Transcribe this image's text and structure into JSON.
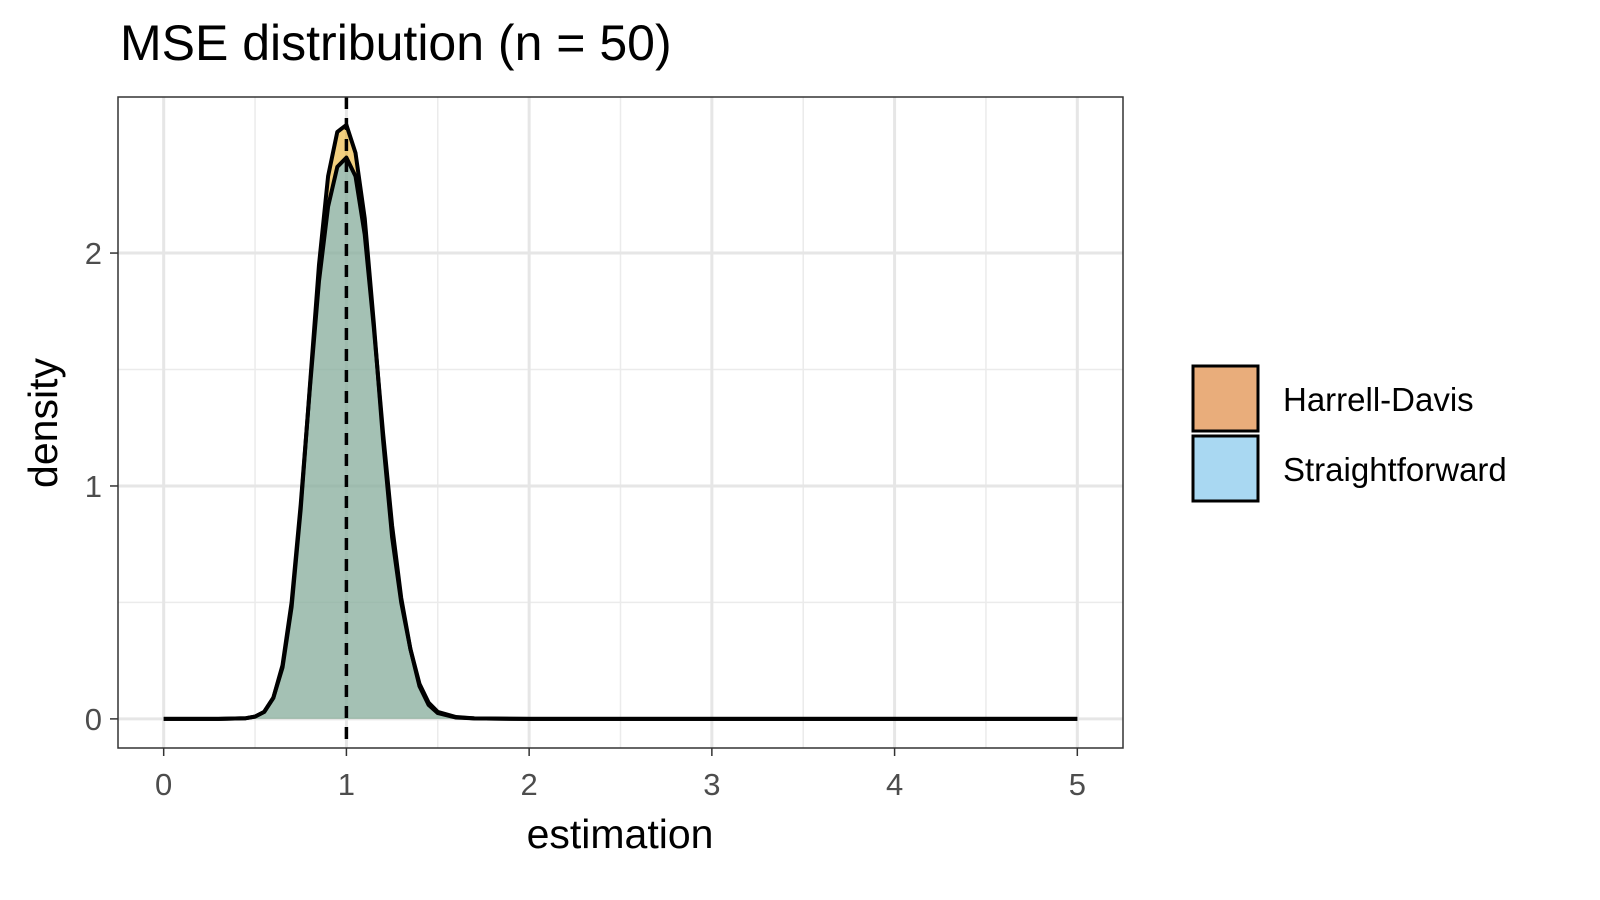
{
  "chart_data": {
    "type": "area",
    "title": "MSE distribution (n = 50)",
    "xlabel": "estimation",
    "ylabel": "density",
    "xlim": [
      -0.25,
      5.25
    ],
    "ylim": [
      -0.125,
      2.67
    ],
    "x_ticks": [
      0,
      1,
      2,
      3,
      4,
      5
    ],
    "y_ticks": [
      0,
      1,
      2
    ],
    "reference_line": {
      "x": 1,
      "style": "dashed",
      "color": "#000000"
    },
    "grid": true,
    "legend_position": "right",
    "series": [
      {
        "name": "Harrell-Davis",
        "color": "#E69F00",
        "fill": "#E9AD7B",
        "points": [
          [
            0,
            0
          ],
          [
            0.3,
            0
          ],
          [
            0.45,
            0.003
          ],
          [
            0.5,
            0.01
          ],
          [
            0.55,
            0.03
          ],
          [
            0.6,
            0.09
          ],
          [
            0.65,
            0.22
          ],
          [
            0.7,
            0.48
          ],
          [
            0.75,
            0.9
          ],
          [
            0.8,
            1.43
          ],
          [
            0.85,
            1.95
          ],
          [
            0.9,
            2.33
          ],
          [
            0.95,
            2.52
          ],
          [
            1.0,
            2.55
          ],
          [
            1.05,
            2.43
          ],
          [
            1.1,
            2.15
          ],
          [
            1.15,
            1.7
          ],
          [
            1.2,
            1.2
          ],
          [
            1.25,
            0.78
          ],
          [
            1.3,
            0.5
          ],
          [
            1.35,
            0.3
          ],
          [
            1.4,
            0.14
          ],
          [
            1.45,
            0.06
          ],
          [
            1.5,
            0.025
          ],
          [
            1.6,
            0.006
          ],
          [
            1.7,
            0.002
          ],
          [
            2.0,
            0
          ],
          [
            5.0,
            0
          ]
        ]
      },
      {
        "name": "Straightforward",
        "color": "#56B4E9",
        "fill": "#A9D8F2",
        "points": [
          [
            0,
            0
          ],
          [
            0.3,
            0
          ],
          [
            0.45,
            0.003
          ],
          [
            0.5,
            0.01
          ],
          [
            0.55,
            0.03
          ],
          [
            0.6,
            0.09
          ],
          [
            0.65,
            0.23
          ],
          [
            0.7,
            0.5
          ],
          [
            0.75,
            0.92
          ],
          [
            0.8,
            1.42
          ],
          [
            0.85,
            1.88
          ],
          [
            0.9,
            2.2
          ],
          [
            0.95,
            2.37
          ],
          [
            1.0,
            2.41
          ],
          [
            1.05,
            2.33
          ],
          [
            1.1,
            2.08
          ],
          [
            1.15,
            1.68
          ],
          [
            1.2,
            1.23
          ],
          [
            1.25,
            0.83
          ],
          [
            1.3,
            0.52
          ],
          [
            1.35,
            0.3
          ],
          [
            1.4,
            0.15
          ],
          [
            1.45,
            0.07
          ],
          [
            1.5,
            0.03
          ],
          [
            1.6,
            0.008
          ],
          [
            1.7,
            0.002
          ],
          [
            2.0,
            0
          ],
          [
            5.0,
            0
          ]
        ]
      }
    ]
  }
}
